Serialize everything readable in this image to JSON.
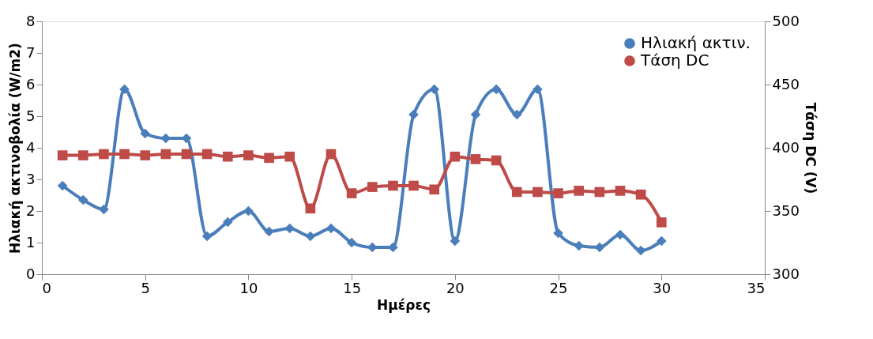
{
  "chart_data": {
    "type": "line",
    "xlabel": "Ημέρες",
    "ylabel": "Ηλιακή ακτινοβολία (W/m2)",
    "y2label": "Τάση DC (V)",
    "x": [
      1,
      2,
      3,
      4,
      5,
      6,
      7,
      8,
      9,
      10,
      11,
      12,
      13,
      14,
      15,
      16,
      17,
      18,
      19,
      20,
      21,
      22,
      23,
      24,
      25,
      26,
      27,
      28,
      29,
      30
    ],
    "xlim": [
      0,
      35
    ],
    "xticks": [
      0,
      5,
      10,
      15,
      20,
      25,
      30,
      35
    ],
    "ylim": [
      0,
      8
    ],
    "yticks": [
      0,
      1,
      2,
      3,
      4,
      5,
      6,
      7,
      8
    ],
    "y2lim": [
      300,
      500
    ],
    "y2ticks": [
      300,
      350,
      400,
      450,
      500
    ],
    "grid": false,
    "legend": "top right",
    "series": [
      {
        "name": "Ηλιακή ακτιν.",
        "color": "#4a7ebb",
        "marker": "diamond",
        "values": [
          2.8,
          2.35,
          2.05,
          5.85,
          4.45,
          4.3,
          4.3,
          1.2,
          1.65,
          2.0,
          1.35,
          1.45,
          1.2,
          1.45,
          1.0,
          0.85,
          0.85,
          5.05,
          5.85,
          1.05,
          5.05,
          5.85,
          5.05,
          5.85,
          1.3,
          0.9,
          0.85,
          1.25,
          0.75,
          1.05
        ]
      },
      {
        "name": "Τάση DC",
        "color": "#be4b48",
        "marker": "square",
        "axis": "y2",
        "values": [
          394,
          394,
          395,
          395,
          394,
          395,
          395,
          395,
          393,
          394,
          392,
          393,
          352,
          395,
          364,
          369,
          370,
          370,
          367,
          393,
          391,
          390,
          365,
          365,
          364,
          366,
          365,
          366,
          363,
          341
        ]
      }
    ]
  }
}
